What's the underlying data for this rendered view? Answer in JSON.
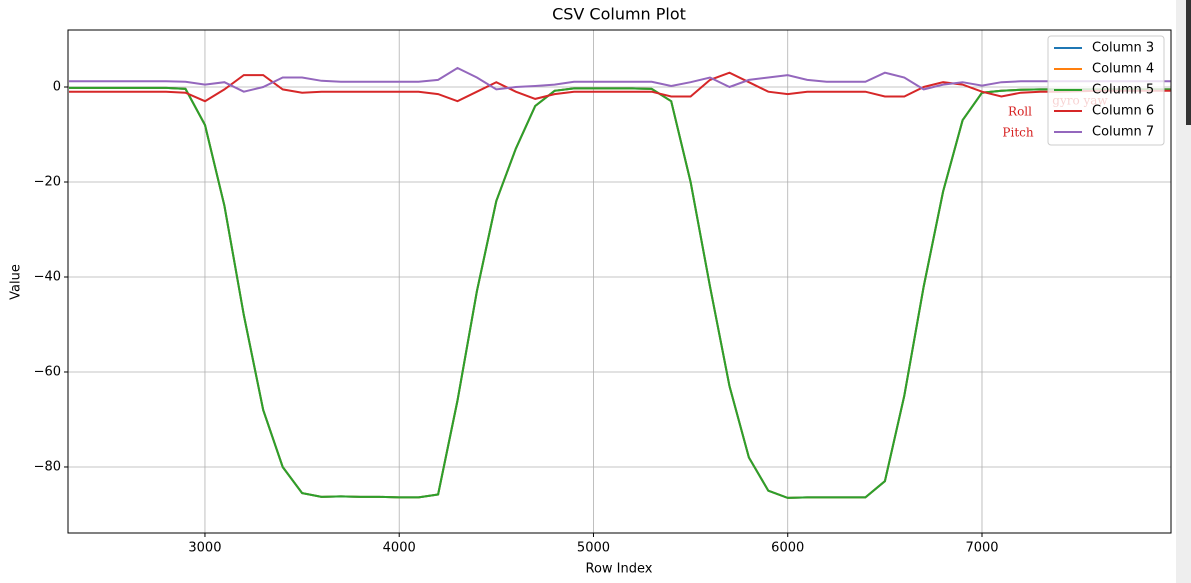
{
  "chart_data": {
    "type": "line",
    "title": "CSV Column Plot",
    "x_label": "Row Index",
    "y_label": "Value",
    "x": [
      2300,
      2400,
      2500,
      2600,
      2700,
      2800,
      2900,
      3000,
      3100,
      3200,
      3300,
      3400,
      3500,
      3600,
      3700,
      3800,
      3900,
      4000,
      4100,
      4200,
      4300,
      4400,
      4500,
      4600,
      4700,
      4800,
      4900,
      5000,
      5100,
      5200,
      5300,
      5400,
      5500,
      5600,
      5700,
      5800,
      5900,
      6000,
      6100,
      6200,
      6300,
      6400,
      6500,
      6600,
      6700,
      6800,
      6900,
      7000,
      7100,
      7200,
      7300,
      7400,
      7500,
      7600,
      7700,
      7800,
      7900,
      7970
    ],
    "series": [
      {
        "name": "Column 3",
        "color": "#1f77b4",
        "values": [
          -0.2,
          -0.2,
          -0.2,
          -0.2,
          -0.2,
          -0.2,
          -0.4,
          -8,
          -25,
          -48,
          -68,
          -80,
          -85.5,
          -86.3,
          -86.2,
          -86.3,
          -86.3,
          -86.4,
          -86.4,
          -85.8,
          -66,
          -43,
          -24,
          -13,
          -4,
          -0.8,
          -0.3,
          -0.3,
          -0.3,
          -0.3,
          -0.4,
          -3,
          -20,
          -42,
          -63,
          -78,
          -85,
          -86.5,
          -86.4,
          -86.4,
          -86.4,
          -86.4,
          -83,
          -65,
          -42,
          -22,
          -7,
          -1.2,
          -0.8,
          -0.6,
          -0.5,
          -0.5,
          -0.5,
          -0.5,
          -0.5,
          -0.5,
          -0.5,
          -0.5
        ]
      },
      {
        "name": "Column 4",
        "color": "#ff7f0e",
        "values": [
          -0.2,
          -0.2,
          -0.2,
          -0.2,
          -0.2,
          -0.2,
          -0.4,
          -8,
          -25,
          -48,
          -68,
          -80,
          -85.5,
          -86.3,
          -86.2,
          -86.3,
          -86.3,
          -86.4,
          -86.4,
          -85.8,
          -66,
          -43,
          -24,
          -13,
          -4,
          -0.8,
          -0.3,
          -0.3,
          -0.3,
          -0.3,
          -0.4,
          -3,
          -20,
          -42,
          -63,
          -78,
          -85,
          -86.5,
          -86.4,
          -86.4,
          -86.4,
          -86.4,
          -83,
          -65,
          -42,
          -22,
          -7,
          -1.2,
          -0.8,
          -0.6,
          -0.5,
          -0.5,
          -0.5,
          -0.5,
          -0.5,
          -0.5,
          -0.5,
          -0.5
        ]
      },
      {
        "name": "Column 5",
        "color": "#2ca02c",
        "values": [
          -0.2,
          -0.2,
          -0.2,
          -0.2,
          -0.2,
          -0.2,
          -0.4,
          -8,
          -25,
          -48,
          -68,
          -80,
          -85.5,
          -86.3,
          -86.2,
          -86.3,
          -86.3,
          -86.4,
          -86.4,
          -85.8,
          -66,
          -43,
          -24,
          -13,
          -4,
          -0.8,
          -0.3,
          -0.3,
          -0.3,
          -0.3,
          -0.4,
          -3,
          -20,
          -42,
          -63,
          -78,
          -85,
          -86.5,
          -86.4,
          -86.4,
          -86.4,
          -86.4,
          -83,
          -65,
          -42,
          -22,
          -7,
          -1.2,
          -0.8,
          -0.6,
          -0.5,
          -0.5,
          -0.5,
          -0.5,
          -0.5,
          -0.5,
          -0.5,
          -0.5
        ]
      },
      {
        "name": "Column 6",
        "color": "#d62728",
        "values": [
          -1,
          -1,
          -1,
          -1,
          -1,
          -1,
          -1.2,
          -3,
          -0.5,
          2.5,
          2.5,
          -0.5,
          -1.2,
          -1,
          -1,
          -1,
          -1,
          -1,
          -1,
          -1.5,
          -3,
          -1,
          1,
          -1,
          -2.5,
          -1.5,
          -1,
          -1,
          -1,
          -1,
          -1,
          -2,
          -2,
          1.5,
          3,
          1,
          -1,
          -1.5,
          -1,
          -1,
          -1,
          -1,
          -2,
          -2,
          0,
          1,
          0.5,
          -1,
          -2,
          -1.2,
          -1,
          -1,
          -0.9,
          -0.8,
          -0.8,
          -0.8,
          -0.8,
          -0.8
        ]
      },
      {
        "name": "Column 7",
        "color": "#9467bd",
        "values": [
          1.2,
          1.2,
          1.2,
          1.2,
          1.2,
          1.2,
          1.1,
          0.5,
          1,
          -1,
          0,
          2,
          2,
          1.3,
          1.1,
          1.1,
          1.1,
          1.1,
          1.1,
          1.5,
          4,
          2,
          -0.5,
          0,
          0.2,
          0.5,
          1.1,
          1.1,
          1.1,
          1.1,
          1.1,
          0.2,
          1,
          2,
          0,
          1.5,
          2,
          2.5,
          1.5,
          1.1,
          1.1,
          1.1,
          3,
          2,
          -0.5,
          0.5,
          1,
          0.3,
          1,
          1.2,
          1.2,
          1.2,
          1.2,
          1.2,
          1.2,
          1.2,
          1.2,
          1.2
        ]
      }
    ],
    "xlim": [
      2295,
      7973
    ],
    "ylim": [
      -93.9,
      12
    ],
    "xticks": [
      3000,
      4000,
      5000,
      6000,
      7000
    ],
    "yticks": [
      0,
      {
        "value": -20,
        "label": "−20"
      },
      {
        "value": -40,
        "label": "−40"
      },
      {
        "value": -60,
        "label": "−60"
      },
      {
        "value": -80,
        "label": "−80"
      }
    ],
    "grid": true,
    "legend": "upper right",
    "annotations": [
      "gyro yaw",
      "Roll",
      "Pitch"
    ]
  }
}
